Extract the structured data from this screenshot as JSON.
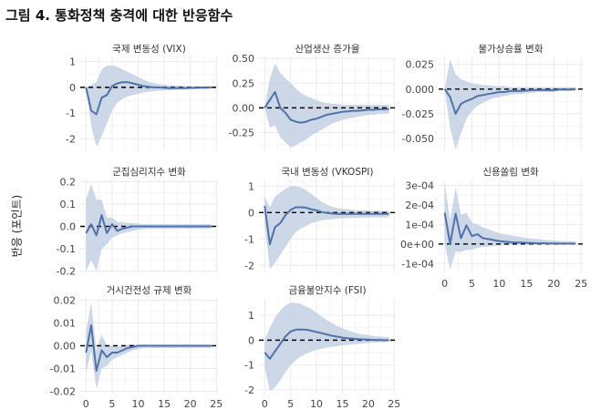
{
  "figure_title": "그림 4. 통화정책 충격에 대한 반응함수",
  "y_axis_label": "반응 (포인트)",
  "colors": {
    "line": "#4f72a8",
    "band": "#c3d0e3",
    "zero_line": "#000000",
    "grid": "#ebebeb"
  },
  "chart_data": [
    {
      "type": "line",
      "title": "국제 변동성 (VIX)",
      "xlim": [
        0,
        25
      ],
      "ylim": [
        -2.45,
        1.2
      ],
      "yticks": [
        1,
        0,
        -1,
        -2
      ],
      "ytick_labels": [
        "1",
        "0",
        "-1",
        "-2"
      ],
      "xticks": [
        0,
        5,
        10,
        15,
        20,
        25
      ],
      "show_xtick_labels": false,
      "x": [
        0,
        1,
        2,
        3,
        4,
        5,
        6,
        7,
        8,
        9,
        10,
        11,
        12,
        13,
        14,
        15,
        16,
        17,
        18,
        19,
        20,
        21,
        22,
        23,
        24
      ],
      "median": [
        0,
        -0.9,
        -1.05,
        -0.4,
        -0.3,
        0.05,
        0.15,
        0.2,
        0.2,
        0.15,
        0.1,
        0.05,
        0.02,
        0,
        0,
        -0.02,
        -0.03,
        -0.03,
        -0.03,
        -0.03,
        -0.02,
        -0.02,
        -0.01,
        -0.01,
        0
      ],
      "lower": [
        0,
        -1.5,
        -2.3,
        -1.9,
        -1.4,
        -0.9,
        -0.6,
        -0.45,
        -0.35,
        -0.3,
        -0.25,
        -0.2,
        -0.17,
        -0.15,
        -0.13,
        -0.12,
        -0.11,
        -0.1,
        -0.09,
        -0.08,
        -0.08,
        -0.07,
        -0.07,
        -0.06,
        -0.06
      ],
      "upper": [
        0,
        0.1,
        0.2,
        0.7,
        0.85,
        0.85,
        0.8,
        0.7,
        0.6,
        0.5,
        0.4,
        0.3,
        0.22,
        0.17,
        0.13,
        0.1,
        0.08,
        0.07,
        0.06,
        0.05,
        0.05,
        0.04,
        0.04,
        0.04,
        0.04
      ]
    },
    {
      "type": "line",
      "title": "산업생산 증가율",
      "xlim": [
        0,
        25
      ],
      "ylim": [
        -0.43,
        0.52
      ],
      "yticks": [
        0.5,
        0.25,
        0,
        -0.25
      ],
      "ytick_labels": [
        "0.50",
        "0.25",
        "0.00",
        "-0.25"
      ],
      "xticks": [
        0,
        5,
        10,
        15,
        20,
        25
      ],
      "show_xtick_labels": false,
      "x": [
        0,
        1,
        2,
        3,
        4,
        5,
        6,
        7,
        8,
        9,
        10,
        11,
        12,
        13,
        14,
        15,
        16,
        17,
        18,
        19,
        20,
        21,
        22,
        23,
        24
      ],
      "median": [
        0,
        0.08,
        0.16,
        0,
        -0.05,
        -0.12,
        -0.14,
        -0.15,
        -0.14,
        -0.12,
        -0.11,
        -0.09,
        -0.07,
        -0.06,
        -0.05,
        -0.04,
        -0.035,
        -0.03,
        -0.03,
        -0.025,
        -0.02,
        -0.02,
        -0.015,
        -0.015,
        -0.01
      ],
      "lower": [
        0,
        -0.2,
        -0.18,
        -0.3,
        -0.35,
        -0.4,
        -0.38,
        -0.35,
        -0.32,
        -0.28,
        -0.25,
        -0.22,
        -0.19,
        -0.16,
        -0.14,
        -0.12,
        -0.11,
        -0.1,
        -0.09,
        -0.08,
        -0.07,
        -0.07,
        -0.06,
        -0.06,
        -0.06
      ],
      "upper": [
        0,
        0.3,
        0.45,
        0.35,
        0.3,
        0.25,
        0.2,
        0.15,
        0.12,
        0.1,
        0.08,
        0.06,
        0.05,
        0.04,
        0.04,
        0.03,
        0.03,
        0.03,
        0.03,
        0.03,
        0.03,
        0.03,
        0.03,
        0.03,
        0.03
      ]
    },
    {
      "type": "line",
      "title": "물가상승률 변화",
      "xlim": [
        0,
        25
      ],
      "ylim": [
        -0.062,
        0.033
      ],
      "yticks": [
        0.025,
        0,
        -0.025,
        -0.05
      ],
      "ytick_labels": [
        "0.025",
        "0.000",
        "-0.025",
        "-0.050"
      ],
      "xticks": [
        0,
        5,
        10,
        15,
        20,
        25
      ],
      "show_xtick_labels": false,
      "x": [
        0,
        1,
        2,
        3,
        4,
        5,
        6,
        7,
        8,
        9,
        10,
        11,
        12,
        13,
        14,
        15,
        16,
        17,
        18,
        19,
        20,
        21,
        22,
        23,
        24
      ],
      "median": [
        0,
        -0.008,
        -0.025,
        -0.015,
        -0.012,
        -0.01,
        -0.007,
        -0.006,
        -0.005,
        -0.004,
        -0.003,
        -0.003,
        -0.002,
        -0.002,
        -0.002,
        -0.0015,
        -0.001,
        -0.001,
        -0.001,
        -0.001,
        -0.001,
        -0.0005,
        -0.0005,
        -0.0005,
        0
      ],
      "lower": [
        0,
        -0.04,
        -0.061,
        -0.045,
        -0.03,
        -0.022,
        -0.017,
        -0.014,
        -0.011,
        -0.009,
        -0.008,
        -0.007,
        -0.006,
        -0.005,
        -0.005,
        -0.004,
        -0.004,
        -0.003,
        -0.003,
        -0.003,
        -0.003,
        -0.002,
        -0.002,
        -0.002,
        -0.002
      ],
      "upper": [
        0,
        0.03,
        0.015,
        0.01,
        0.008,
        0.006,
        0.005,
        0.004,
        0.004,
        0.003,
        0.003,
        0.003,
        0.002,
        0.002,
        0.002,
        0.002,
        0.002,
        0.002,
        0.002,
        0.002,
        0.002,
        0.002,
        0.002,
        0.002,
        0.002
      ]
    },
    {
      "type": "line",
      "title": "군집심리지수 변화",
      "xlim": [
        0,
        25
      ],
      "ylim": [
        -0.21,
        0.21
      ],
      "yticks": [
        0.2,
        0.1,
        0,
        -0.1,
        -0.2
      ],
      "ytick_labels": [
        "0.2",
        "0.1",
        "0.0",
        "-0.1",
        "-0.2"
      ],
      "xticks": [
        0,
        5,
        10,
        15,
        20,
        25
      ],
      "show_xtick_labels": false,
      "x": [
        0,
        1,
        2,
        3,
        4,
        5,
        6,
        7,
        8,
        9,
        10,
        11,
        12,
        13,
        14,
        15,
        16,
        17,
        18,
        19,
        20,
        21,
        22,
        23,
        24
      ],
      "median": [
        -0.03,
        0.01,
        -0.04,
        0.05,
        -0.03,
        0.01,
        -0.02,
        -0.01,
        -0.005,
        0,
        0,
        0,
        0,
        0,
        0,
        0,
        0,
        0,
        0,
        0,
        0,
        0,
        0,
        0,
        0
      ],
      "lower": [
        -0.2,
        -0.15,
        -0.2,
        -0.1,
        -0.08,
        -0.05,
        -0.04,
        -0.03,
        -0.025,
        -0.02,
        -0.015,
        -0.012,
        -0.01,
        -0.01,
        -0.01,
        -0.01,
        -0.01,
        -0.01,
        -0.01,
        -0.01,
        -0.01,
        -0.01,
        -0.01,
        -0.01,
        -0.01
      ],
      "upper": [
        0.12,
        0.19,
        0.12,
        0.12,
        0.04,
        0.04,
        0.02,
        0.02,
        0.015,
        0.015,
        0.012,
        0.01,
        0.01,
        0.01,
        0.01,
        0.01,
        0.01,
        0.01,
        0.01,
        0.01,
        0.01,
        0.01,
        0.01,
        0.01,
        0.01
      ]
    },
    {
      "type": "line",
      "title": "국내 변동성 (VKOSPI)",
      "xlim": [
        0,
        25
      ],
      "ylim": [
        -2.3,
        1.25
      ],
      "yticks": [
        1,
        0,
        -1,
        -2
      ],
      "ytick_labels": [
        "1",
        "0",
        "-1",
        "-2"
      ],
      "xticks": [
        0,
        5,
        10,
        15,
        20,
        25
      ],
      "show_xtick_labels": false,
      "x": [
        0,
        1,
        2,
        3,
        4,
        5,
        6,
        7,
        8,
        9,
        10,
        11,
        12,
        13,
        14,
        15,
        16,
        17,
        18,
        19,
        20,
        21,
        22,
        23,
        24
      ],
      "median": [
        0.25,
        -1.2,
        -0.55,
        -0.4,
        -0.1,
        0.1,
        0.2,
        0.2,
        0.18,
        0.12,
        0.08,
        0.02,
        -0.02,
        -0.04,
        -0.05,
        -0.05,
        -0.05,
        -0.05,
        -0.05,
        -0.05,
        -0.05,
        -0.05,
        -0.05,
        -0.05,
        -0.05
      ],
      "lower": [
        -0.4,
        -2.15,
        -1.9,
        -1.6,
        -1.3,
        -1.0,
        -0.75,
        -0.6,
        -0.5,
        -0.4,
        -0.35,
        -0.3,
        -0.27,
        -0.25,
        -0.23,
        -0.22,
        -0.21,
        -0.2,
        -0.2,
        -0.19,
        -0.19,
        -0.18,
        -0.18,
        -0.18,
        -0.18
      ],
      "upper": [
        0.6,
        0.2,
        0.6,
        0.75,
        0.9,
        1.0,
        1.0,
        0.95,
        0.85,
        0.7,
        0.55,
        0.4,
        0.3,
        0.22,
        0.17,
        0.14,
        0.12,
        0.1,
        0.09,
        0.08,
        0.08,
        0.07,
        0.07,
        0.06,
        0.06
      ]
    },
    {
      "type": "line",
      "title": "신용쏠림 변화",
      "xlim": [
        0,
        25
      ],
      "ylim": [
        -0.00015,
        0.00033
      ],
      "yticks": [
        0.0003,
        0.0002,
        0.0001,
        0,
        -0.0001
      ],
      "ytick_labels": [
        "3e-04",
        "2e-04",
        "1e-04",
        "0e+00",
        "-1e-04"
      ],
      "xticks": [
        0,
        5,
        10,
        15,
        20,
        25
      ],
      "show_xtick_labels": true,
      "xtick_labels": [
        "0",
        "5",
        "10",
        "15",
        "20",
        "25"
      ],
      "x": [
        0,
        1,
        2,
        3,
        4,
        5,
        6,
        7,
        8,
        9,
        10,
        11,
        12,
        13,
        14,
        15,
        16,
        17,
        18,
        19,
        20,
        21,
        22,
        23,
        24
      ],
      "median": [
        0.00016,
        0,
        0.000155,
        3e-05,
        9.5e-05,
        4e-05,
        5e-05,
        3e-05,
        2.5e-05,
        2e-05,
        1.5e-05,
        1.2e-05,
        1e-05,
        8e-06,
        7e-06,
        6e-06,
        5e-06,
        4e-06,
        4e-06,
        3e-06,
        3e-06,
        2e-06,
        2e-06,
        2e-06,
        2e-06
      ],
      "lower": [
        0,
        -0.00013,
        -4e-05,
        -4e-05,
        -3e-05,
        -3e-05,
        -2e-05,
        -1.5e-05,
        -1.2e-05,
        -1e-05,
        -8e-06,
        -6e-06,
        -5e-06,
        -4e-06,
        -4e-06,
        -3e-06,
        -3e-06,
        -2e-06,
        -2e-06,
        -2e-06,
        -2e-06,
        -2e-06,
        -2e-06,
        -2e-06,
        -2e-06
      ],
      "upper": [
        0.00031,
        0.00012,
        0.00029,
        0.00015,
        0.00016,
        0.00011,
        0.0001,
        8.5e-05,
        7.5e-05,
        6.5e-05,
        5.5e-05,
        5e-05,
        4.5e-05,
        4e-05,
        3.5e-05,
        3e-05,
        2.7e-05,
        2.5e-05,
        2.2e-05,
        2e-05,
        1.8e-05,
        1.6e-05,
        1.5e-05,
        1.4e-05,
        1.3e-05
      ]
    },
    {
      "type": "line",
      "title": "거시건전성 규제 변화",
      "xlim": [
        0,
        25
      ],
      "ylim": [
        -0.021,
        0.021
      ],
      "yticks": [
        0.02,
        0.01,
        0,
        -0.01,
        -0.02
      ],
      "ytick_labels": [
        "0.02",
        "0.01",
        "0.00",
        "-0.01",
        "-0.02"
      ],
      "xticks": [
        0,
        5,
        10,
        15,
        20,
        25
      ],
      "show_xtick_labels": true,
      "xtick_labels": [
        "0",
        "5",
        "10",
        "15",
        "20",
        "25"
      ],
      "x": [
        0,
        1,
        2,
        3,
        4,
        5,
        6,
        7,
        8,
        9,
        10,
        11,
        12,
        13,
        14,
        15,
        16,
        17,
        18,
        19,
        20,
        21,
        22,
        23,
        24
      ],
      "median": [
        -0.003,
        0.009,
        -0.011,
        -0.002,
        -0.005,
        -0.003,
        -0.003,
        -0.002,
        -0.001,
        -0.0005,
        0,
        0,
        0,
        0,
        0,
        0,
        0,
        0,
        0,
        0,
        0,
        0,
        0,
        0,
        0
      ],
      "lower": [
        -0.012,
        -0.002,
        -0.019,
        -0.01,
        -0.009,
        -0.006,
        -0.005,
        -0.004,
        -0.003,
        -0.002,
        -0.0015,
        -0.001,
        -0.001,
        -0.001,
        -0.001,
        -0.001,
        -0.001,
        -0.001,
        -0.001,
        -0.001,
        -0.001,
        -0.001,
        -0.001,
        -0.001,
        -0.001
      ],
      "upper": [
        0.006,
        0.019,
        -0.002,
        0.005,
        0,
        0,
        -0.0005,
        0,
        0.0005,
        0.0005,
        0.0005,
        0.0005,
        0.0005,
        0.0005,
        0.0005,
        0.0005,
        0.0005,
        0.0005,
        0.0005,
        0.0005,
        0.0005,
        0.0005,
        0.0005,
        0.0005,
        0.0005
      ]
    },
    {
      "type": "line",
      "title": "금융불안지수 (FSI)",
      "xlim": [
        0,
        25
      ],
      "ylim": [
        -2.15,
        1.7
      ],
      "yticks": [
        1,
        0,
        -1,
        -2
      ],
      "ytick_labels": [
        "1",
        "0",
        "-1",
        "-2"
      ],
      "xticks": [
        0,
        5,
        10,
        15,
        20,
        25
      ],
      "show_xtick_labels": true,
      "xtick_labels": [
        "0",
        "5",
        "10",
        "15",
        "20",
        "25"
      ],
      "x": [
        0,
        1,
        2,
        3,
        4,
        5,
        6,
        7,
        8,
        9,
        10,
        11,
        12,
        13,
        14,
        15,
        16,
        17,
        18,
        19,
        20,
        21,
        22,
        23,
        24
      ],
      "median": [
        -0.5,
        -0.75,
        -0.45,
        -0.15,
        0.15,
        0.35,
        0.42,
        0.43,
        0.42,
        0.38,
        0.33,
        0.28,
        0.23,
        0.18,
        0.14,
        0.1,
        0.08,
        0.06,
        0.04,
        0.03,
        0.02,
        0.01,
        0.01,
        0,
        0
      ],
      "lower": [
        -1.1,
        -2.05,
        -1.9,
        -1.6,
        -1.3,
        -1.0,
        -0.8,
        -0.65,
        -0.55,
        -0.45,
        -0.4,
        -0.35,
        -0.3,
        -0.27,
        -0.24,
        -0.21,
        -0.19,
        -0.17,
        -0.15,
        -0.13,
        -0.12,
        -0.1,
        -0.09,
        -0.08,
        -0.07
      ],
      "upper": [
        0,
        0.5,
        0.9,
        1.2,
        1.4,
        1.5,
        1.5,
        1.45,
        1.35,
        1.25,
        1.1,
        0.95,
        0.8,
        0.68,
        0.57,
        0.48,
        0.4,
        0.33,
        0.27,
        0.23,
        0.2,
        0.17,
        0.15,
        0.13,
        0.12
      ]
    }
  ]
}
